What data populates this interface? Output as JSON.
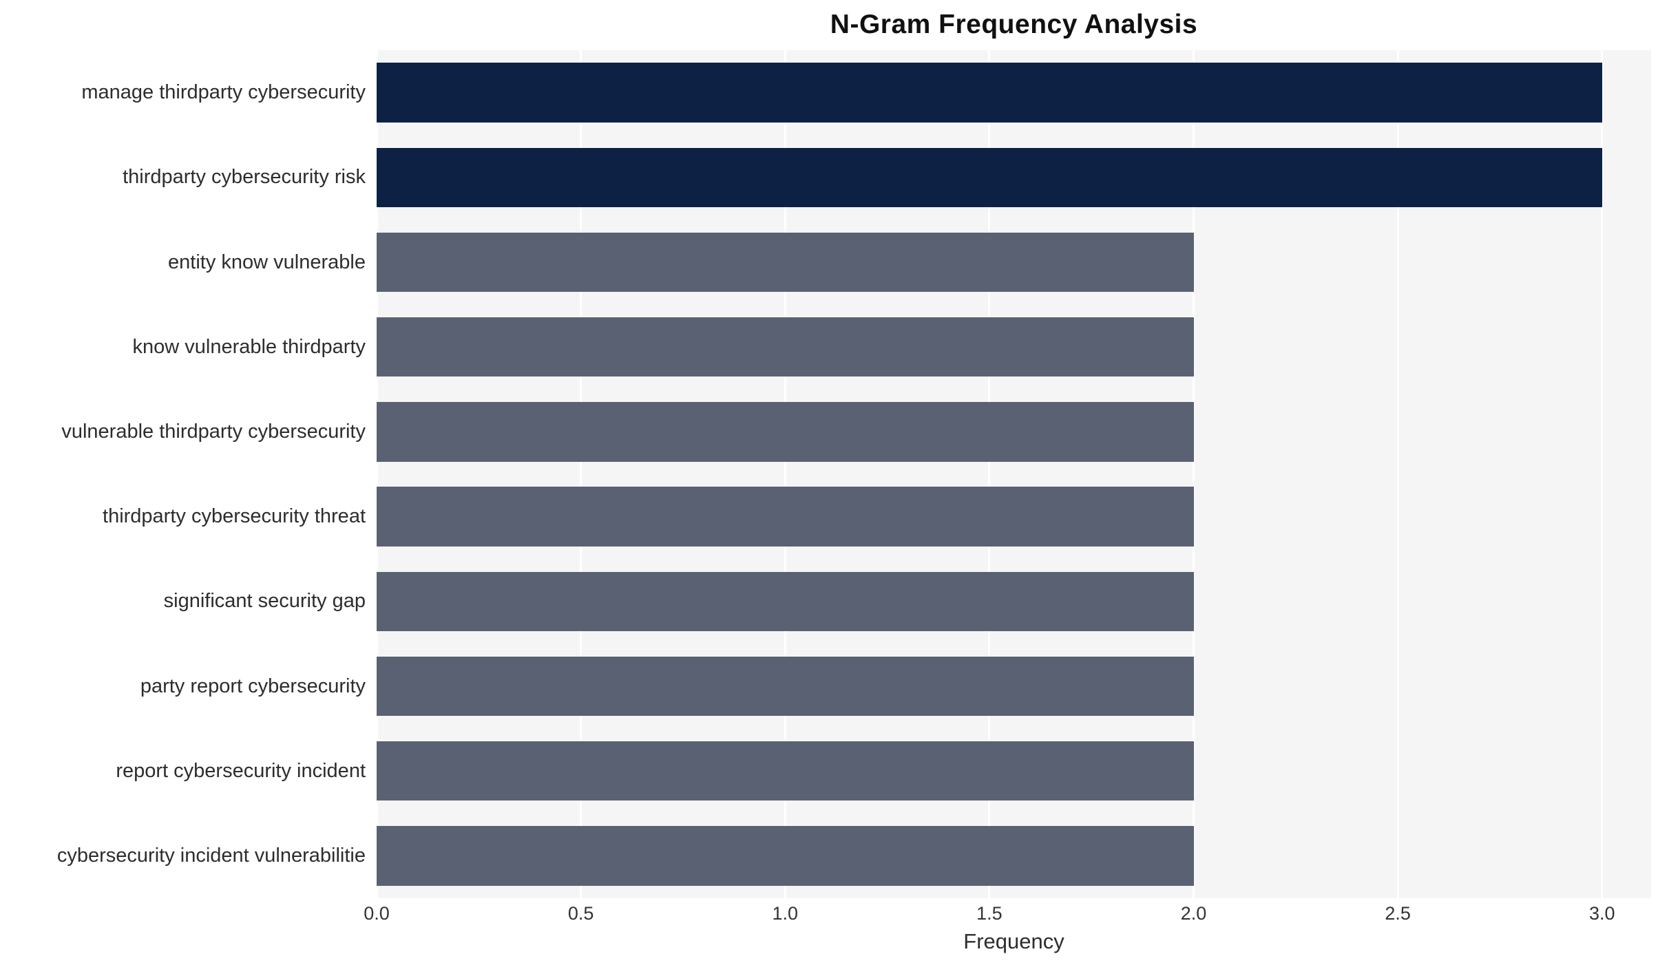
{
  "chart": {
    "title": "N-Gram Frequency Analysis",
    "xlabel": "Frequency"
  },
  "chart_data": {
    "type": "bar",
    "orientation": "horizontal",
    "title": "N-Gram Frequency Analysis",
    "xlabel": "Frequency",
    "ylabel": "",
    "categories": [
      "manage thirdparty cybersecurity",
      "thirdparty cybersecurity risk",
      "entity know vulnerable",
      "know vulnerable thirdparty",
      "vulnerable thirdparty cybersecurity",
      "thirdparty cybersecurity threat",
      "significant security gap",
      "party report cybersecurity",
      "report cybersecurity incident",
      "cybersecurity incident vulnerabilitie"
    ],
    "values": [
      3,
      3,
      2,
      2,
      2,
      2,
      2,
      2,
      2,
      2
    ],
    "bar_colors": [
      "#0c2144",
      "#0c2144",
      "#5a6172",
      "#5a6172",
      "#5a6172",
      "#5a6172",
      "#5a6172",
      "#5a6172",
      "#5a6172",
      "#5a6172"
    ],
    "xlim": [
      0,
      3.12
    ],
    "xticks": [
      0,
      0.5,
      1,
      1.5,
      2,
      2.5,
      3
    ],
    "xtick_labels": [
      "0.0",
      "0.5",
      "1.0",
      "1.5",
      "2.0",
      "2.5",
      "3.0"
    ],
    "grid": true,
    "plot_background": "#f5f5f6",
    "gridline_color": "#ffffff",
    "legend": "none"
  }
}
